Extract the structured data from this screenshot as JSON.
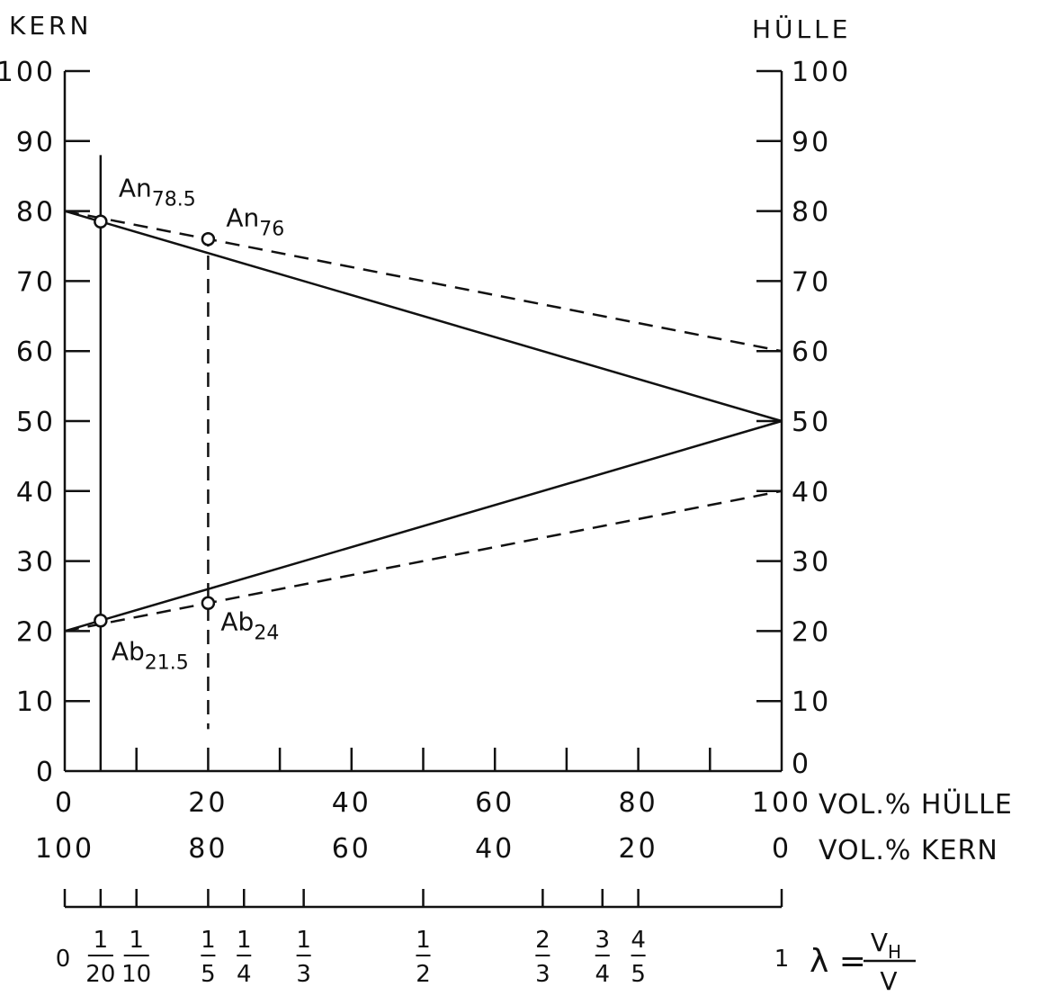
{
  "chart_data": {
    "type": "line",
    "title_left": "KERN",
    "title_right": "HÜLLE",
    "y_left": {
      "ticks": [
        "100",
        "90",
        "80",
        "70",
        "60",
        "50",
        "40",
        "30",
        "20",
        "10",
        "0"
      ],
      "ylim": [
        0,
        100
      ]
    },
    "y_right": {
      "ticks": [
        "100",
        "90",
        "80",
        "70",
        "60",
        "50",
        "40",
        "30",
        "20",
        "10",
        "0"
      ],
      "ylim": [
        0,
        100
      ]
    },
    "x_hulle": {
      "label": "VOL.% HÜLLE",
      "ticks": [
        "0",
        "20",
        "40",
        "60",
        "80",
        "100"
      ],
      "xlim": [
        0,
        100
      ]
    },
    "x_kern": {
      "label": "VOL.% KERN",
      "ticks": [
        "100",
        "80",
        "60",
        "40",
        "20",
        "0"
      ]
    },
    "lambda_axis": {
      "label": "λ =",
      "numerator": "V_H",
      "denominator": "V",
      "ticks": [
        {
          "value": 0,
          "num": "0",
          "den": ""
        },
        {
          "value": 0.05,
          "num": "1",
          "den": "20"
        },
        {
          "value": 0.1,
          "num": "1",
          "den": "10"
        },
        {
          "value": 0.2,
          "num": "1",
          "den": "5"
        },
        {
          "value": 0.25,
          "num": "1",
          "den": "4"
        },
        {
          "value": 0.3333,
          "num": "1",
          "den": "3"
        },
        {
          "value": 0.5,
          "num": "1",
          "den": "2"
        },
        {
          "value": 0.6667,
          "num": "2",
          "den": "3"
        },
        {
          "value": 0.75,
          "num": "3",
          "den": "4"
        },
        {
          "value": 0.8,
          "num": "4",
          "den": "5"
        },
        {
          "value": 1,
          "num": "1",
          "den": ""
        }
      ]
    },
    "series": [
      {
        "style": "solid",
        "points": [
          [
            0,
            80
          ],
          [
            100,
            50
          ]
        ]
      },
      {
        "style": "solid",
        "points": [
          [
            0,
            20
          ],
          [
            100,
            50
          ]
        ]
      },
      {
        "style": "dashed",
        "points": [
          [
            0,
            80
          ],
          [
            100,
            60
          ]
        ]
      },
      {
        "style": "dashed",
        "points": [
          [
            0,
            20
          ],
          [
            100,
            40
          ]
        ]
      }
    ],
    "verticals": [
      {
        "x": 5,
        "style": "solid",
        "y_from": 0,
        "y_to": 88
      },
      {
        "x": 20,
        "style": "dashed",
        "y_from": 6,
        "y_to": 77
      }
    ],
    "points": [
      {
        "x": 5,
        "y": 78.5,
        "name": "An",
        "sub": "78.5"
      },
      {
        "x": 20,
        "y": 76,
        "name": "An",
        "sub": "76"
      },
      {
        "x": 5,
        "y": 21.5,
        "name": "Ab",
        "sub": "21.5"
      },
      {
        "x": 20,
        "y": 24,
        "name": "Ab",
        "sub": "24"
      }
    ]
  }
}
